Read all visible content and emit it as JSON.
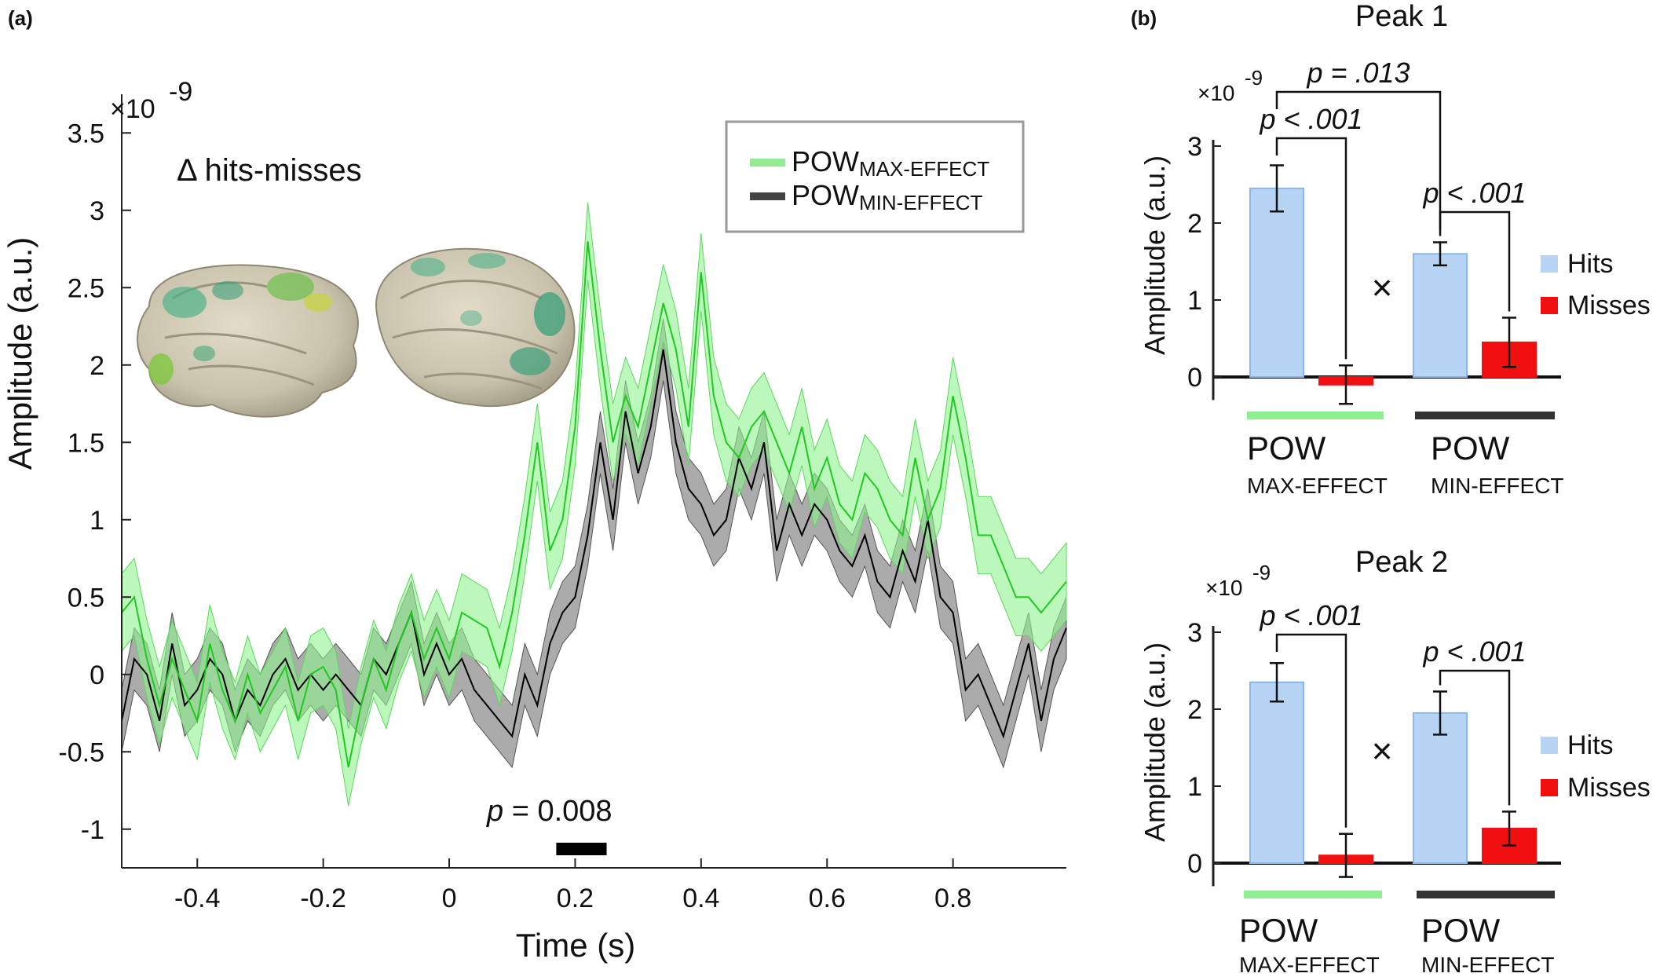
{
  "panel_labels": {
    "a": "(a)",
    "b": "(b)"
  },
  "colors": {
    "max_line": "#22c822",
    "max_band": "#8ff28f",
    "min_line": "#000000",
    "min_band": "#8f8f8f",
    "hits": "#b8d4f4",
    "hits_edge": "#8ab6e8",
    "misses": "#f01010",
    "bar_underline_max": "#90ee90",
    "bar_underline_min": "#333333"
  },
  "chart_data": [
    {
      "type": "line",
      "panel": "(a)",
      "title": "",
      "annotation": "Δ hits-misses",
      "xlabel": "Time (s)",
      "ylabel": "Amplitude (a.u.)",
      "y_exponent_label": "×10",
      "y_exponent_power": "-9",
      "xlim": [
        -0.52,
        0.98
      ],
      "ylim": [
        -1.25,
        3.75
      ],
      "xticks": [
        -0.4,
        -0.2,
        0,
        0.2,
        0.4,
        0.6,
        0.8
      ],
      "xtick_labels": [
        "-0.4",
        "-0.2",
        "0",
        "0.2",
        "0.4",
        "0.6",
        "0.8"
      ],
      "yticks": [
        -1,
        -0.5,
        0,
        0.5,
        1,
        1.5,
        2,
        2.5,
        3,
        3.5
      ],
      "ytick_labels": [
        "-1",
        "-0.5",
        "0",
        "0.5",
        "1",
        "1.5",
        "2",
        "2.5",
        "3",
        "3.5"
      ],
      "legend_position": "top-right",
      "legend": [
        {
          "main": "POW",
          "sub": "MAX-EFFECT"
        },
        {
          "main": "POW",
          "sub": "MIN-EFFECT"
        }
      ],
      "significance": {
        "p_italic": "p",
        "p_rest": " = 0.008",
        "x_start": 0.17,
        "x_end": 0.25
      },
      "x": [
        -0.52,
        -0.5,
        -0.48,
        -0.46,
        -0.44,
        -0.42,
        -0.4,
        -0.38,
        -0.36,
        -0.34,
        -0.32,
        -0.3,
        -0.28,
        -0.26,
        -0.24,
        -0.22,
        -0.2,
        -0.18,
        -0.16,
        -0.14,
        -0.12,
        -0.1,
        -0.08,
        -0.06,
        -0.04,
        -0.02,
        0,
        0.02,
        0.04,
        0.06,
        0.08,
        0.1,
        0.12,
        0.14,
        0.16,
        0.18,
        0.2,
        0.22,
        0.24,
        0.26,
        0.28,
        0.3,
        0.32,
        0.34,
        0.36,
        0.38,
        0.4,
        0.42,
        0.44,
        0.46,
        0.48,
        0.5,
        0.52,
        0.54,
        0.56,
        0.58,
        0.6,
        0.62,
        0.64,
        0.66,
        0.68,
        0.7,
        0.72,
        0.74,
        0.76,
        0.78,
        0.8,
        0.82,
        0.84,
        0.86,
        0.88,
        0.9,
        0.92,
        0.94,
        0.96,
        0.98
      ],
      "series": [
        {
          "name": "POW MAX-EFFECT",
          "values": [
            0.4,
            0.5,
            0.1,
            -0.2,
            0.1,
            -0.1,
            -0.3,
            0.2,
            -0.1,
            -0.3,
            0.0,
            -0.25,
            -0.1,
            0.05,
            -0.3,
            0.0,
            0.05,
            -0.1,
            -0.6,
            -0.2,
            0.1,
            -0.1,
            0.2,
            0.4,
            0.1,
            0.3,
            0.1,
            0.4,
            0.35,
            0.3,
            0.05,
            0.4,
            0.9,
            1.5,
            0.8,
            1.0,
            1.6,
            2.8,
            2.1,
            1.5,
            1.8,
            1.6,
            2.0,
            2.4,
            2.1,
            1.6,
            2.6,
            1.8,
            1.5,
            1.4,
            1.6,
            1.7,
            1.5,
            1.3,
            1.6,
            1.2,
            1.4,
            1.1,
            1.0,
            1.3,
            1.2,
            1.0,
            0.9,
            1.4,
            1.0,
            1.2,
            1.8,
            1.4,
            0.9,
            0.9,
            0.7,
            0.5,
            0.5,
            0.4,
            0.5,
            0.6
          ],
          "band_halfwidth": 0.25
        },
        {
          "name": "POW MIN-EFFECT",
          "values": [
            -0.3,
            0.1,
            0.0,
            -0.3,
            0.2,
            -0.2,
            -0.1,
            0.1,
            0.0,
            -0.3,
            -0.1,
            -0.2,
            0.0,
            0.1,
            -0.1,
            0.0,
            -0.1,
            0.0,
            -0.1,
            -0.2,
            0.1,
            0.0,
            0.2,
            0.4,
            0.0,
            0.2,
            0.0,
            0.1,
            -0.1,
            -0.2,
            -0.3,
            -0.4,
            0.0,
            -0.2,
            0.2,
            0.4,
            0.5,
            0.9,
            1.5,
            1.0,
            1.7,
            1.3,
            1.6,
            2.1,
            1.5,
            1.2,
            1.1,
            0.9,
            1.0,
            1.4,
            1.2,
            1.5,
            0.8,
            1.1,
            0.9,
            1.1,
            1.0,
            0.8,
            0.7,
            0.9,
            0.6,
            0.5,
            0.8,
            0.6,
            1.0,
            0.5,
            0.4,
            -0.1,
            0.0,
            -0.2,
            -0.4,
            -0.1,
            0.2,
            -0.3,
            0.1,
            0.3
          ],
          "band_halfwidth": 0.2
        }
      ]
    },
    {
      "type": "bar",
      "panel": "(b)",
      "title": "Peak 1",
      "ylabel": "Amplitude (a.u.)",
      "y_exponent_label": "×10",
      "y_exponent_power": "-9",
      "ylim": [
        -0.3,
        3.0
      ],
      "yticks": [
        0,
        1,
        2,
        3
      ],
      "ytick_labels": [
        "0",
        "1",
        "2",
        "3"
      ],
      "groups": [
        {
          "main": "POW",
          "sub": "MAX-EFFECT"
        },
        {
          "main": "POW",
          "sub": "MIN-EFFECT"
        }
      ],
      "series": [
        {
          "name": "Hits",
          "values": [
            2.45,
            1.6
          ],
          "errors": [
            0.3,
            0.15
          ]
        },
        {
          "name": "Misses",
          "values": [
            -0.1,
            0.45
          ],
          "errors": [
            0.25,
            0.32
          ]
        }
      ],
      "interaction_symbol": "×",
      "significance": [
        {
          "label": "p < .001",
          "pair": "group1"
        },
        {
          "label": "p < .001",
          "pair": "group2"
        },
        {
          "label": "p = .013",
          "pair": "across"
        }
      ]
    },
    {
      "type": "bar",
      "panel": "(b)",
      "title": "Peak 2",
      "ylabel": "Amplitude (a.u.)",
      "y_exponent_label": "×10",
      "y_exponent_power": "-9",
      "ylim": [
        -0.3,
        3.0
      ],
      "yticks": [
        0,
        1,
        2,
        3
      ],
      "ytick_labels": [
        "0",
        "1",
        "2",
        "3"
      ],
      "groups": [
        {
          "main": "POW",
          "sub": "MAX-EFFECT"
        },
        {
          "main": "POW",
          "sub": "MIN-EFFECT"
        }
      ],
      "series": [
        {
          "name": "Hits",
          "values": [
            2.35,
            1.95
          ],
          "errors": [
            0.25,
            0.28
          ]
        },
        {
          "name": "Misses",
          "values": [
            0.1,
            0.45
          ],
          "errors": [
            0.28,
            0.22
          ]
        }
      ],
      "interaction_symbol": "×",
      "significance": [
        {
          "label": "p < .001",
          "pair": "group1"
        },
        {
          "label": "p < .001",
          "pair": "group2"
        }
      ]
    }
  ]
}
